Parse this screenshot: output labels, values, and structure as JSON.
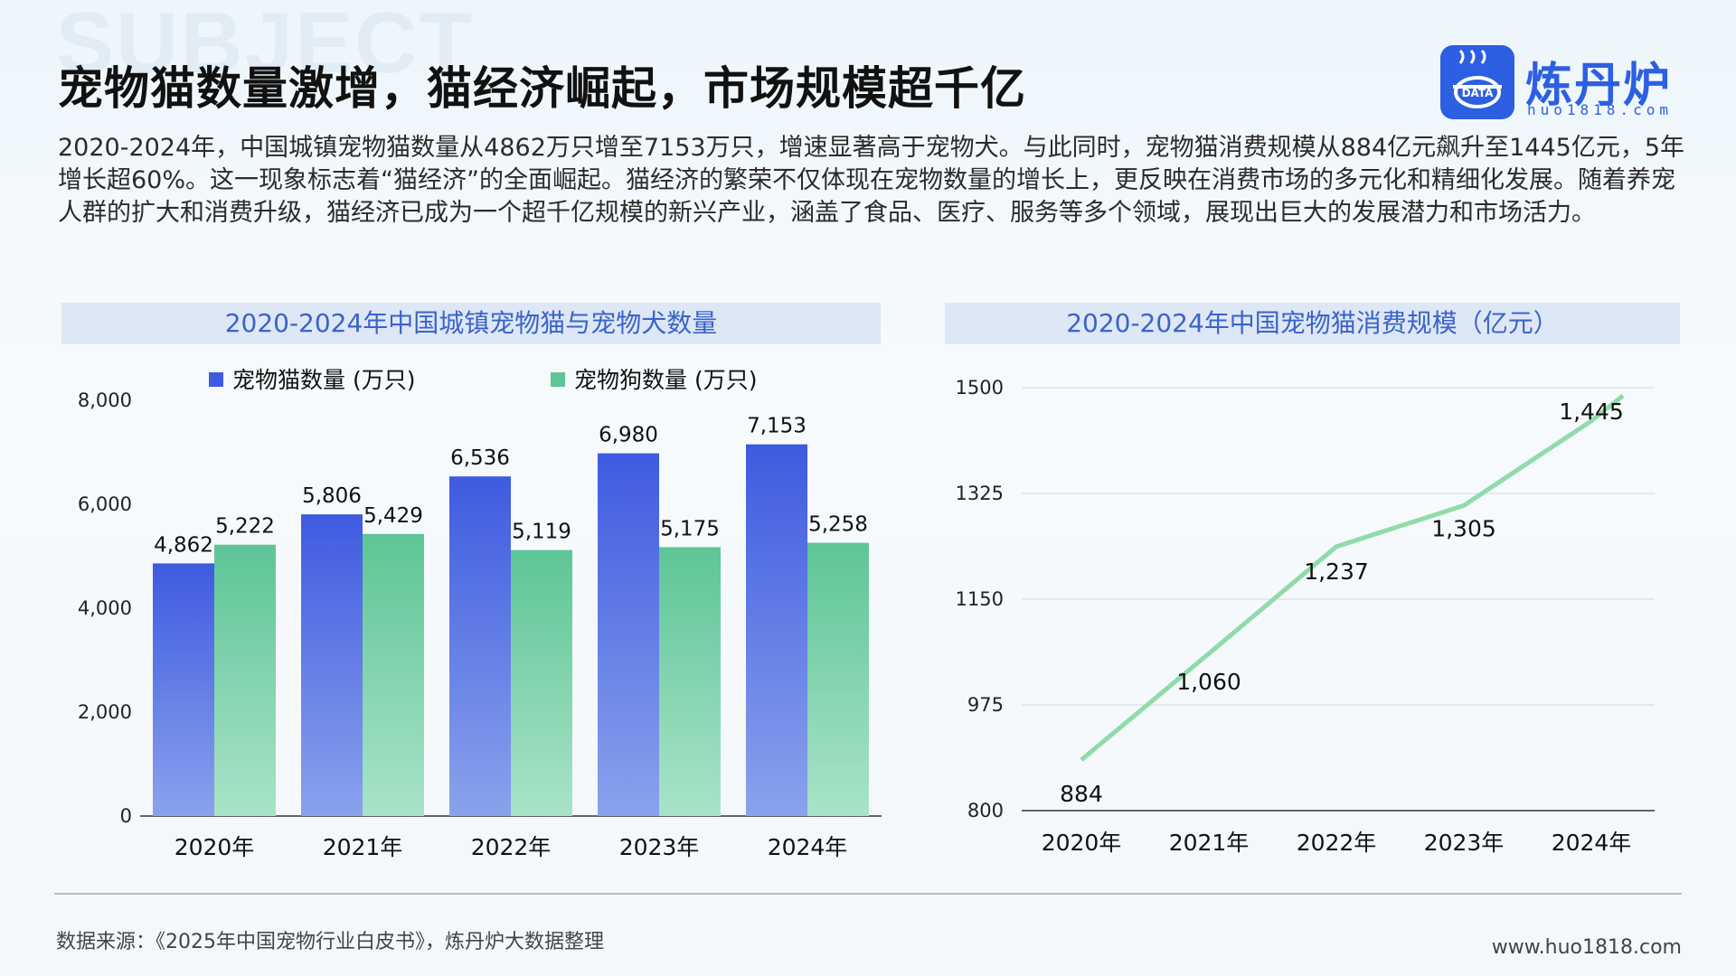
{
  "header": {
    "bg_word": "SUBJECT",
    "title": "宠物猫数量激增，猫经济崛起，市场规模超千亿"
  },
  "logo": {
    "badge_text": "DATA",
    "name": "炼丹炉",
    "url": "huo1818.com",
    "icon": "cauldron-icon"
  },
  "intro": "2020-2024年，中国城镇宠物猫数量从4862万只增至7153万只，增速显著高于宠物犬。与此同时，宠物猫消费规模从884亿元飙升至1445亿元，5年增长超60%。这一现象标志着“猫经济”的全面崛起。猫经济的繁荣不仅体现在宠物数量的增长上，更反映在消费市场的多元化和精细化发展。随着养宠人群的扩大和消费升级，猫经济已成为一个超千亿规模的新兴产业，涵盖了食品、医疗、服务等多个领域，展现出巨大的发展潜力和市场活力。",
  "chart_data": [
    {
      "type": "bar",
      "title": "2020-2024年中国城镇宠物猫与宠物犬数量",
      "categories": [
        "2020年",
        "2021年",
        "2022年",
        "2023年",
        "2024年"
      ],
      "series": [
        {
          "name": "宠物猫数量 (万只)",
          "values": [
            4862,
            5806,
            6536,
            6980,
            7153
          ],
          "color_top": "#3e5be0",
          "color_bottom": "#8aa2ec"
        },
        {
          "name": "宠物狗数量 (万只)",
          "values": [
            5222,
            5429,
            5119,
            5175,
            5258
          ],
          "color_top": "#5ec596",
          "color_bottom": "#a9e3c8"
        }
      ],
      "value_labels": [
        [
          "4,862",
          "5,806",
          "6,536",
          "6,980",
          "7,153"
        ],
        [
          "5,222",
          "5,429",
          "5,119",
          "5,175",
          "5,258"
        ]
      ],
      "yticks": [
        0,
        2000,
        4000,
        6000,
        8000
      ],
      "ytick_labels": [
        "0",
        "2,000",
        "4,000",
        "6,000",
        "8,000"
      ],
      "ylim": [
        0,
        8000
      ],
      "legend_position": "top",
      "grid": false
    },
    {
      "type": "line",
      "title": "2020-2024年中国宠物猫消费规模（亿元）",
      "categories": [
        "2020年",
        "2021年",
        "2022年",
        "2023年",
        "2024年"
      ],
      "series": [
        {
          "values": [
            884,
            1060,
            1237,
            1305,
            1445
          ],
          "color": "#8fdca8"
        }
      ],
      "value_labels": [
        "884",
        "1,060",
        "1,237",
        "1,305",
        "1,445"
      ],
      "yticks": [
        800,
        975,
        1150,
        1325,
        1500
      ],
      "ytick_labels": [
        "800",
        "975",
        "1150",
        "1325",
        "1500"
      ],
      "ylim": [
        800,
        1500
      ],
      "grid": true
    }
  ],
  "footer": {
    "source": "数据来源：《2025年中国宠物行业白皮书》，炼丹炉大数据整理",
    "site": "www.huo1818.com"
  }
}
